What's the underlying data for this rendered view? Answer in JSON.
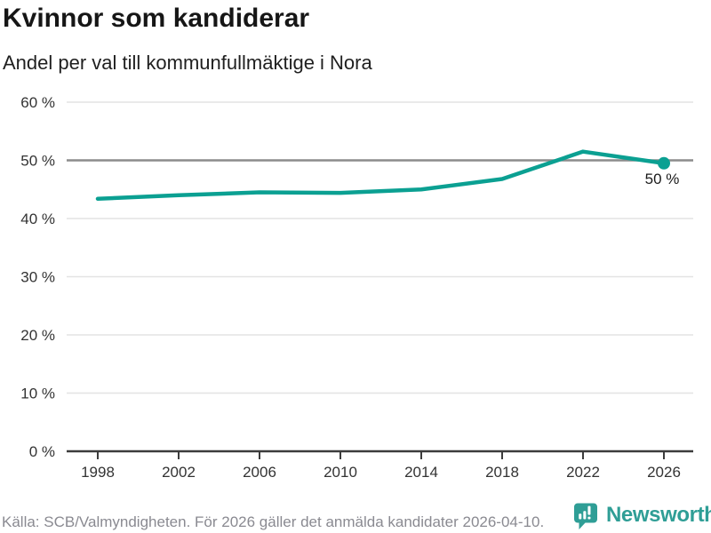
{
  "chart_data": {
    "type": "line",
    "title": "Kvinnor som kandiderar",
    "subtitle": "Andel per val till kommunfullmäktige i Nora",
    "x": [
      1998,
      2002,
      2006,
      2010,
      2014,
      2018,
      2022,
      2026
    ],
    "x_tick_labels": [
      "1998",
      "2002",
      "2006",
      "2010",
      "2014",
      "2018",
      "2022",
      "2026"
    ],
    "values": [
      43.4,
      44.0,
      44.5,
      44.4,
      45.0,
      46.8,
      51.5,
      49.5
    ],
    "ylim": [
      0,
      60
    ],
    "y_ticks": [
      0,
      10,
      20,
      30,
      40,
      50,
      60
    ],
    "y_tick_labels": [
      "0 %",
      "10 %",
      "20 %",
      "30 %",
      "40 %",
      "50 %",
      "60 %"
    ],
    "grid": "horizontal",
    "legend": "none",
    "emphasized_gridline": 50,
    "end_point_label": "50 %",
    "line_color": "#0ba092",
    "grid_color": "#e3e3e3",
    "emph_grid_color": "#8c8c8c",
    "axis_color": "#3c3c3c",
    "tick_label_color": "#333333",
    "end_label_color": "#1a1a1a"
  },
  "footer": {
    "source": "Källa: SCB/Valmyndigheten. För 2026 gäller det anmälda kandidater 2026-04-10.",
    "logo_text": "Newsworthy",
    "logo_color": "#2f9e96"
  }
}
